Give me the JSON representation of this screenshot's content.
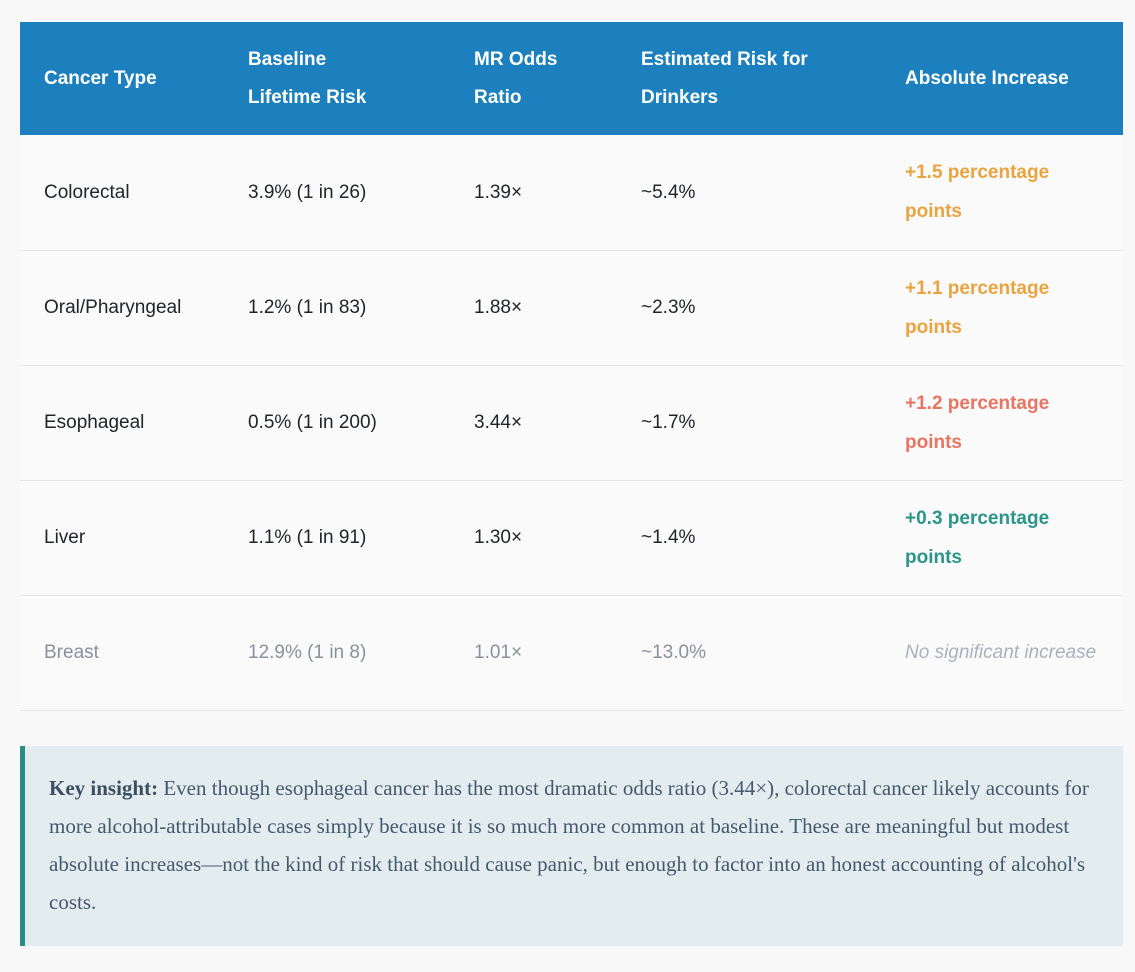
{
  "colors": {
    "page_background": "#f8f8f9",
    "table_row_background": "#fafafb",
    "table_header_background": "#1c80be",
    "table_header_text": "#ffffff",
    "table_body_text": "#212529",
    "row_divider": "#e5e5ea",
    "muted_row_text": "#8b909a",
    "increase_orange": "#e9a440",
    "increase_salmon": "#e87561",
    "increase_teal": "#2b948b",
    "increase_muted_gray": "#abb0ba",
    "callout_background": "#e3edef",
    "callout_border": "#2b8b85",
    "callout_text": "#46586e"
  },
  "table": {
    "header": {
      "columns": [
        "Cancer Type",
        "Baseline Lifetime Risk",
        "MR Odds Ratio",
        "Estimated Risk for Drinkers",
        "Absolute Increase"
      ]
    },
    "rows": [
      {
        "cancer_type": "Colorectal",
        "baseline_lifetime_risk": "3.9% (1 in 26)",
        "mr_odds_ratio": "1.39×",
        "estimated_risk_for_drinkers": "~5.4%",
        "absolute_increase": "+1.5 percentage points",
        "absolute_increase_color": "#e9a440"
      },
      {
        "cancer_type": "Oral/Pharyngeal",
        "baseline_lifetime_risk": "1.2% (1 in 83)",
        "mr_odds_ratio": "1.88×",
        "estimated_risk_for_drinkers": "~2.3%",
        "absolute_increase": "+1.1 percentage points",
        "absolute_increase_color": "#e9a440"
      },
      {
        "cancer_type": "Esophageal",
        "baseline_lifetime_risk": "0.5% (1 in 200)",
        "mr_odds_ratio": "3.44×",
        "estimated_risk_for_drinkers": "~1.7%",
        "absolute_increase": "+1.2 percentage points",
        "absolute_increase_color": "#e87561"
      },
      {
        "cancer_type": "Liver",
        "baseline_lifetime_risk": "1.1% (1 in 91)",
        "mr_odds_ratio": "1.30×",
        "estimated_risk_for_drinkers": "~1.4%",
        "absolute_increase": "+0.3 percentage points",
        "absolute_increase_color": "#2b948b"
      },
      {
        "cancer_type": "Breast",
        "baseline_lifetime_risk": "12.9% (1 in 8)",
        "mr_odds_ratio": "1.01×",
        "estimated_risk_for_drinkers": "~13.0%",
        "absolute_increase": "No significant increase",
        "absolute_increase_color": "#abb0ba"
      }
    ]
  },
  "callout": {
    "label": "Key insight:",
    "text": " Even though esophageal cancer has the most dramatic odds ratio (3.44×), colorectal cancer likely accounts for more alcohol-attributable cases simply because it is so much more common at baseline. These are meaningful but modest absolute increases—not the kind of risk that should cause panic, but enough to factor into an honest accounting of alcohol's costs.",
    "border_color": "#2b8b85",
    "background_color": "#e3edef"
  }
}
